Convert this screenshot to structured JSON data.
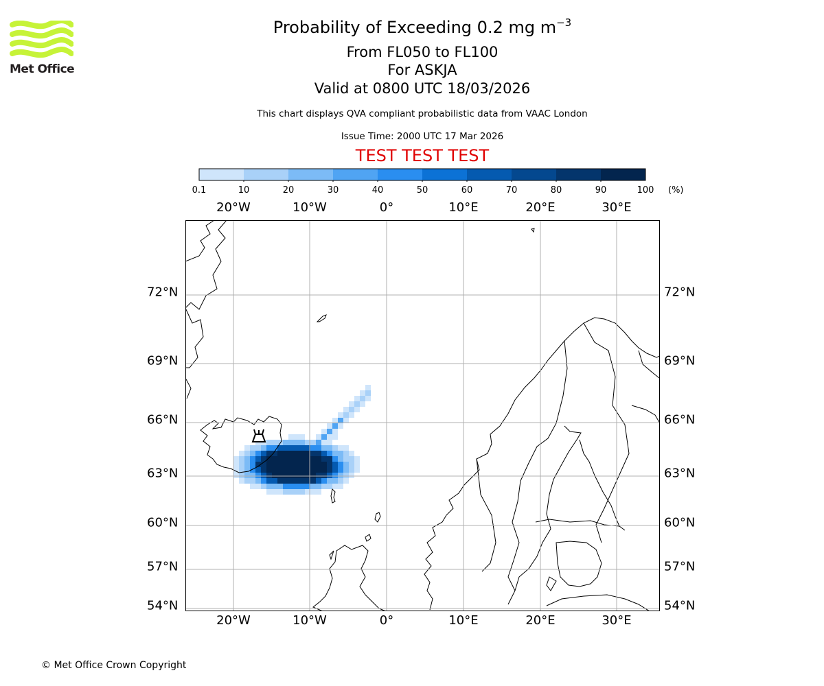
{
  "logo": {
    "text": "Met Office",
    "color": "#c6f338"
  },
  "title": {
    "line1": "Probability of Exceeding 0.2 mg m",
    "line1_sup": "−3",
    "line2": "From FL050 to FL100",
    "line3": "For ASKJA",
    "line4": "Valid at 0800 UTC 18/03/2026"
  },
  "description": "This chart displays QVA compliant probabilistic data from VAAC London",
  "issue_time": "Issue Time: 2000 UTC 17 Mar 2026",
  "test_banner": {
    "text": "TEST TEST TEST",
    "color": "#e00000"
  },
  "colorbar": {
    "ticks": [
      "0.1",
      "10",
      "20",
      "30",
      "40",
      "50",
      "60",
      "70",
      "80",
      "90",
      "100"
    ],
    "unit": "(%)",
    "colors": [
      "#eef6fd",
      "#cfe5fb",
      "#a9d1f8",
      "#7cbbf6",
      "#50a4f3",
      "#2a8ef0",
      "#0c72d6",
      "#055ab0",
      "#04488f",
      "#04356c",
      "#03254e"
    ]
  },
  "map": {
    "lon_labels": [
      "20°W",
      "10°W",
      "0°",
      "10°E",
      "20°E",
      "30°E"
    ],
    "lat_labels": [
      "72°N",
      "69°N",
      "66°N",
      "63°N",
      "60°N",
      "57°N",
      "54°N"
    ],
    "volcano": "ASKJA"
  },
  "copyright": "© Met Office Crown Copyright"
}
